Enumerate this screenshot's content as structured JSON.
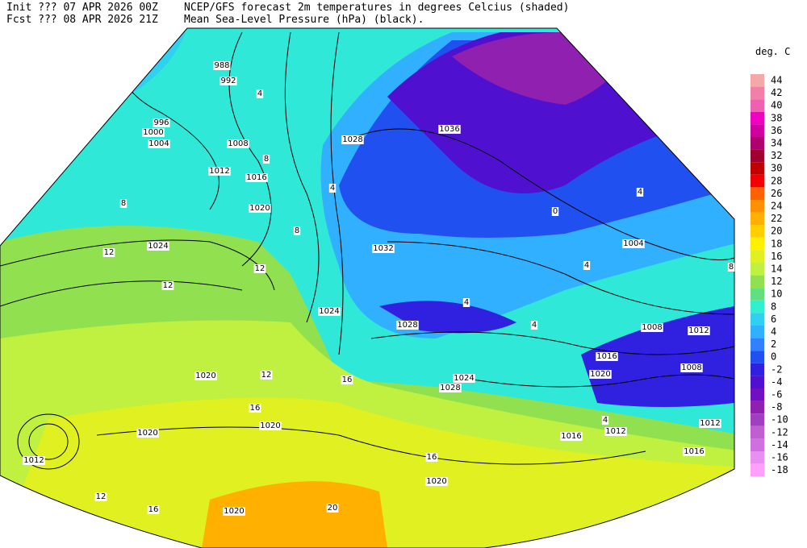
{
  "header": {
    "init": "Init  ??? 07 APR 2026 00Z",
    "fcst": "Fcst ??? 08 APR 2026 21Z",
    "line1": "NCEP/GFS forecast 2m temperatures in degrees Celcius (shaded)",
    "line2": "Mean Sea-Level Pressure (hPa) (black)."
  },
  "colorbar": {
    "title": "deg. C",
    "levels": [
      44,
      42,
      40,
      38,
      36,
      34,
      32,
      30,
      28,
      26,
      24,
      22,
      20,
      18,
      16,
      14,
      12,
      10,
      8,
      6,
      4,
      2,
      0,
      -2,
      -4,
      -6,
      -8,
      -10,
      -12,
      -14,
      -16,
      -18
    ],
    "colors": [
      "#f4a8a8",
      "#f080a8",
      "#f060b0",
      "#f000c0",
      "#d000a0",
      "#b00070",
      "#a00030",
      "#c00000",
      "#f00000",
      "#ff6000",
      "#ff9000",
      "#ffb000",
      "#ffd000",
      "#fff000",
      "#e0f020",
      "#c0f040",
      "#90e050",
      "#60e080",
      "#30f0d0",
      "#30d0f0",
      "#30b0ff",
      "#3080ff",
      "#2050f0",
      "#3020e0",
      "#5010d0",
      "#7010c0",
      "#9020b0",
      "#a040c0",
      "#c060d0",
      "#d070e0",
      "#e890f0",
      "#ffa0ff"
    ]
  },
  "isobar_labels": [
    988,
    992,
    996,
    1000,
    1004,
    1008,
    1012,
    1016,
    1020,
    1024,
    1028,
    1032,
    1036,
    1024,
    1028,
    1024,
    1028,
    1004,
    1008,
    1012,
    1016,
    1020,
    1008,
    1012,
    1016,
    1012,
    1016,
    1020,
    1020,
    1020,
    1020,
    1012,
    1020
  ],
  "temperature_labels": [
    12,
    12,
    8,
    4,
    8,
    12,
    8,
    4,
    12,
    16,
    16,
    16,
    12,
    20,
    4,
    4,
    0,
    4,
    4,
    8,
    4,
    16
  ]
}
